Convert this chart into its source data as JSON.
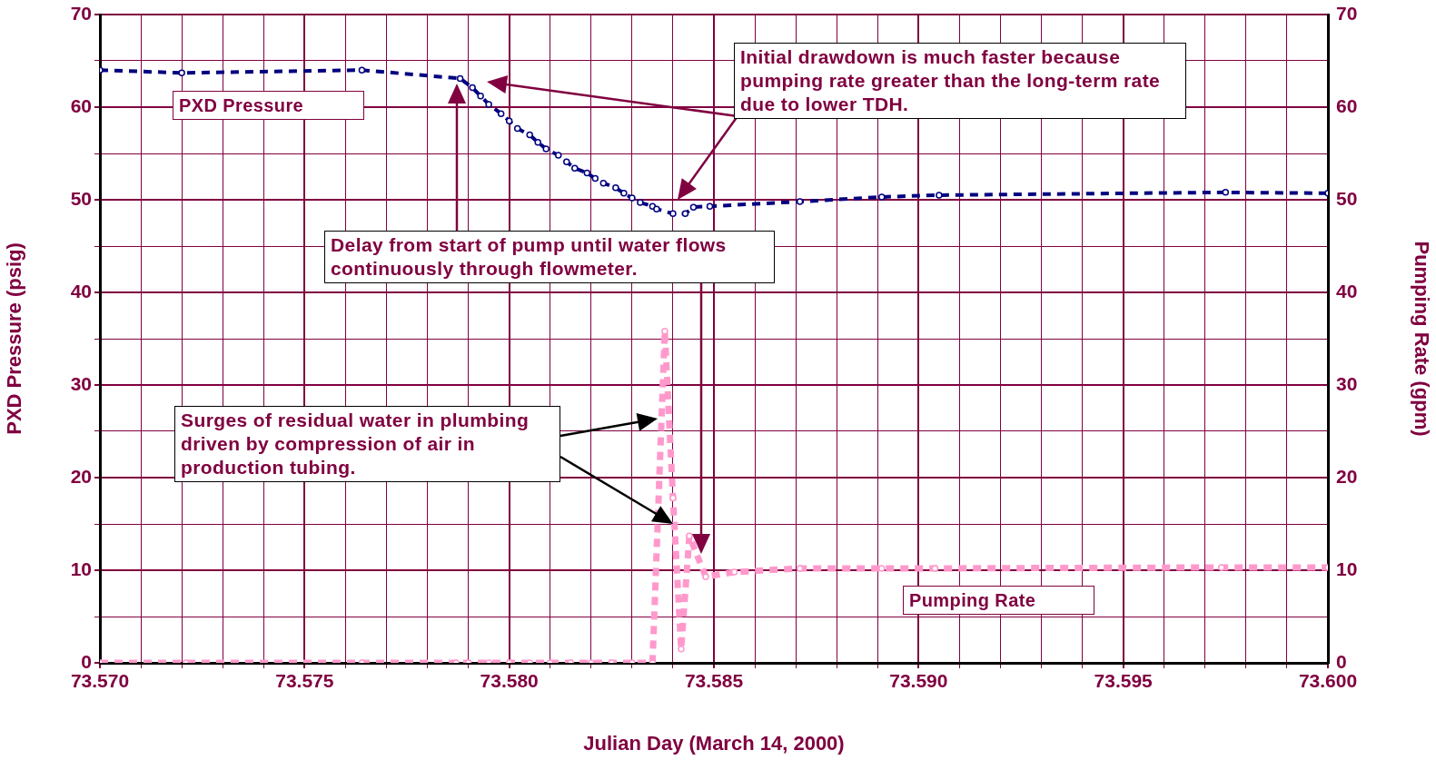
{
  "chart_data": {
    "type": "line",
    "xlabel": "Julian Day (March 14, 2000)",
    "ylabel": "PXD Pressure (psig)",
    "y2label": "Pumping Rate (gpm)",
    "xlim": [
      73.57,
      73.6
    ],
    "xticks": [
      {
        "value": 73.57,
        "label": "73.570"
      },
      {
        "value": 73.571,
        "label": null
      },
      {
        "value": 73.572,
        "label": null
      },
      {
        "value": 73.573,
        "label": null
      },
      {
        "value": 73.574,
        "label": null
      },
      {
        "value": 73.575,
        "label": "73.575"
      },
      {
        "value": 73.576,
        "label": null
      },
      {
        "value": 73.577,
        "label": null
      },
      {
        "value": 73.578,
        "label": null
      },
      {
        "value": 73.579,
        "label": null
      },
      {
        "value": 73.58,
        "label": "73.580"
      },
      {
        "value": 73.581,
        "label": null
      },
      {
        "value": 73.582,
        "label": null
      },
      {
        "value": 73.583,
        "label": null
      },
      {
        "value": 73.584,
        "label": null
      },
      {
        "value": 73.585,
        "label": "73.585"
      },
      {
        "value": 73.586,
        "label": null
      },
      {
        "value": 73.587,
        "label": null
      },
      {
        "value": 73.588,
        "label": null
      },
      {
        "value": 73.589,
        "label": null
      },
      {
        "value": 73.59,
        "label": "73.590"
      },
      {
        "value": 73.591,
        "label": null
      },
      {
        "value": 73.592,
        "label": null
      },
      {
        "value": 73.593,
        "label": null
      },
      {
        "value": 73.594,
        "label": null
      },
      {
        "value": 73.595,
        "label": "73.595"
      },
      {
        "value": 73.596,
        "label": null
      },
      {
        "value": 73.597,
        "label": null
      },
      {
        "value": 73.598,
        "label": null
      },
      {
        "value": 73.599,
        "label": null
      },
      {
        "value": 73.6,
        "label": "73.600"
      }
    ],
    "ylim": [
      0,
      70
    ],
    "yticks": [
      0,
      {
        "value": 5,
        "label": null
      },
      10,
      {
        "value": 15,
        "label": null
      },
      20,
      {
        "value": 25,
        "label": null
      },
      30,
      {
        "value": 35,
        "label": null
      },
      40,
      {
        "value": 45,
        "label": null
      },
      50,
      {
        "value": 55,
        "label": null
      },
      60,
      {
        "value": 65,
        "label": null
      },
      70
    ],
    "y2lim": [
      0,
      70
    ],
    "y2ticks": [
      0,
      10,
      20,
      30,
      40,
      50,
      60,
      70
    ],
    "grid": true,
    "legend": false,
    "marker": "circle",
    "line_style": "dashed",
    "series": [
      {
        "name": "PXD Pressure",
        "color": "#000080",
        "x": [
          73.57,
          73.572,
          73.5764,
          73.5788,
          73.5791,
          73.5793,
          73.5795,
          73.5798,
          73.58,
          73.5802,
          73.5805,
          73.5807,
          73.5809,
          73.5812,
          73.5814,
          73.5816,
          73.5819,
          73.5821,
          73.5823,
          73.5826,
          73.5828,
          73.583,
          73.5832,
          73.5835,
          73.5836,
          73.584,
          73.5843,
          73.5845,
          73.5849,
          73.5871,
          73.5891,
          73.5905,
          73.5975,
          73.6
        ],
        "values": [
          64.0,
          63.7,
          64.0,
          63.1,
          62.1,
          61.2,
          60.3,
          59.3,
          58.5,
          57.7,
          57.0,
          56.2,
          55.5,
          54.8,
          54.1,
          53.4,
          52.9,
          52.3,
          51.8,
          51.3,
          50.7,
          50.2,
          49.7,
          49.3,
          49.0,
          48.5,
          48.5,
          49.2,
          49.3,
          49.8,
          50.3,
          50.5,
          50.8,
          50.7
        ]
      },
      {
        "name": "Pumping Rate",
        "color": "#ff99cc",
        "axis": "y2",
        "x": [
          73.57,
          73.5721,
          73.5764,
          73.5787,
          73.579,
          73.5795,
          73.58,
          73.5805,
          73.581,
          73.5815,
          73.582,
          73.5825,
          73.583,
          73.5835,
          73.5838,
          73.584,
          73.5842,
          73.5844,
          73.5848,
          73.5855,
          73.5871,
          73.5891,
          73.5904,
          73.5974,
          73.6
        ],
        "values": [
          0,
          0,
          0,
          0,
          0,
          0,
          0,
          0,
          0,
          0,
          0,
          0,
          0,
          0,
          35.8,
          17.8,
          1.5,
          13.7,
          9.3,
          9.8,
          10.2,
          10.2,
          10.2,
          10.3,
          10.3
        ]
      }
    ],
    "annotations": [
      "Initial drawdown is much faster because pumping rate greater than the long-term rate due to lower TDH.",
      "Delay from start of pump until water flows continuously through flowmeter.",
      "Surges of residual water in plumbing driven by compression of air in production tubing."
    ]
  }
}
